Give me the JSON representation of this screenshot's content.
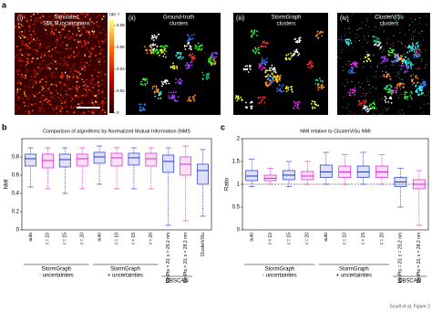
{
  "panel_a": {
    "letter": "a",
    "images": [
      {
        "tag": "(i)",
        "caption": [
          "Simulated",
          "SMLM localizations"
        ]
      },
      {
        "tag": "(ii)",
        "caption": [
          "Ground-truth",
          "clusters"
        ]
      },
      {
        "tag": "(iii)",
        "caption": [
          "StormGraph",
          "clusters"
        ]
      },
      {
        "tag": "(iv)",
        "caption": [
          "ClusterViSu",
          "clusters"
        ]
      }
    ],
    "colorbar": {
      "unit": "nm⁻²",
      "lim": [
        0,
        0.085
      ],
      "ticks": [
        0,
        0.02,
        0.04,
        0.06,
        0.08
      ]
    }
  },
  "chart_data": [
    {
      "type": "box",
      "letter": "b",
      "title": "Comparison of algorithms by Normalized Mutual Information (NMI)",
      "ylabel": "NMI",
      "categories": [
        "auto",
        "ℓ = 10",
        "ℓ = 15",
        "ℓ = 20",
        "auto",
        "ℓ = 10",
        "ℓ = 15",
        "ℓ = 20",
        "MinPts = 20, ε = 25.2 nm",
        "MinPts = 20, ε = 28.2 nm",
        "ClusterViSu"
      ],
      "groups": [
        {
          "lines": [
            "StormGraph",
            "- uncertainties"
          ]
        },
        {
          "lines": [
            "StormGraph",
            "+ uncertainties"
          ]
        },
        {
          "lines": [
            "DBSCAN"
          ]
        }
      ],
      "ylim": [
        0,
        1
      ],
      "yticks": [
        0,
        0.2,
        0.4,
        0.6,
        0.8
      ],
      "boxes": [
        {
          "min": 0.47,
          "q1": 0.7,
          "median": 0.78,
          "q3": 0.83,
          "max": 0.9,
          "color": "#2233cc"
        },
        {
          "min": 0.45,
          "q1": 0.68,
          "median": 0.76,
          "q3": 0.83,
          "max": 0.9,
          "color": "#e020d0"
        },
        {
          "min": 0.4,
          "q1": 0.69,
          "median": 0.77,
          "q3": 0.83,
          "max": 0.9,
          "color": "#2233cc"
        },
        {
          "min": 0.45,
          "q1": 0.7,
          "median": 0.78,
          "q3": 0.83,
          "max": 0.9,
          "color": "#e020d0"
        },
        {
          "min": 0.5,
          "q1": 0.73,
          "median": 0.8,
          "q3": 0.85,
          "max": 0.92,
          "color": "#2233cc"
        },
        {
          "min": 0.45,
          "q1": 0.7,
          "median": 0.79,
          "q3": 0.84,
          "max": 0.9,
          "color": "#e020d0"
        },
        {
          "min": 0.45,
          "q1": 0.71,
          "median": 0.79,
          "q3": 0.84,
          "max": 0.9,
          "color": "#2233cc"
        },
        {
          "min": 0.45,
          "q1": 0.7,
          "median": 0.78,
          "q3": 0.84,
          "max": 0.9,
          "color": "#e020d0"
        },
        {
          "min": 0.05,
          "q1": 0.63,
          "median": 0.75,
          "q3": 0.82,
          "max": 0.9,
          "color": "#2233cc"
        },
        {
          "min": 0.1,
          "q1": 0.6,
          "median": 0.72,
          "q3": 0.8,
          "max": 0.92,
          "color": "#e020d0"
        },
        {
          "min": 0.15,
          "q1": 0.5,
          "median": 0.65,
          "q3": 0.72,
          "max": 0.88,
          "color": "#2233cc"
        }
      ]
    },
    {
      "type": "box",
      "letter": "c",
      "title": "NMI relative to ClusterViSu NMI",
      "ylabel": "Ratio",
      "categories": [
        "auto",
        "ℓ = 10",
        "ℓ = 15",
        "ℓ = 20",
        "auto",
        "ℓ = 10",
        "ℓ = 15",
        "ℓ = 20",
        "MinPts = 20, ε = 25.2 nm",
        "MinPts = 20, ε = 28.2 nm"
      ],
      "groups": [
        {
          "lines": [
            "StormGraph",
            "- uncertainties"
          ]
        },
        {
          "lines": [
            "StormGraph",
            "+ uncertainties"
          ]
        },
        {
          "lines": [
            "DBSCAN"
          ]
        }
      ],
      "ylim": [
        0,
        2
      ],
      "yticks": [
        0,
        0.5,
        1,
        1.5,
        2
      ],
      "reference_line": 1,
      "boxes": [
        {
          "min": 0.95,
          "q1": 1.08,
          "median": 1.18,
          "q3": 1.3,
          "max": 1.55,
          "color": "#2233cc"
        },
        {
          "min": 1.0,
          "q1": 1.08,
          "median": 1.13,
          "q3": 1.2,
          "max": 1.35,
          "color": "#e020d0"
        },
        {
          "min": 0.95,
          "q1": 1.1,
          "median": 1.2,
          "q3": 1.3,
          "max": 1.5,
          "color": "#2233cc"
        },
        {
          "min": 1.0,
          "q1": 1.1,
          "median": 1.18,
          "q3": 1.28,
          "max": 1.5,
          "color": "#e020d0"
        },
        {
          "min": 1.0,
          "q1": 1.15,
          "median": 1.27,
          "q3": 1.42,
          "max": 1.7,
          "color": "#2233cc"
        },
        {
          "min": 1.0,
          "q1": 1.15,
          "median": 1.27,
          "q3": 1.4,
          "max": 1.65,
          "color": "#e020d0"
        },
        {
          "min": 1.0,
          "q1": 1.15,
          "median": 1.27,
          "q3": 1.4,
          "max": 1.7,
          "color": "#2233cc"
        },
        {
          "min": 1.0,
          "q1": 1.15,
          "median": 1.27,
          "q3": 1.4,
          "max": 1.65,
          "color": "#e020d0"
        },
        {
          "min": 0.5,
          "q1": 0.95,
          "median": 1.05,
          "q3": 1.15,
          "max": 1.35,
          "color": "#2233cc"
        },
        {
          "min": 0.1,
          "q1": 0.9,
          "median": 1.0,
          "q3": 1.1,
          "max": 1.3,
          "color": "#e020d0"
        }
      ]
    }
  ],
  "footer": "Scurll et al, Figure 2"
}
